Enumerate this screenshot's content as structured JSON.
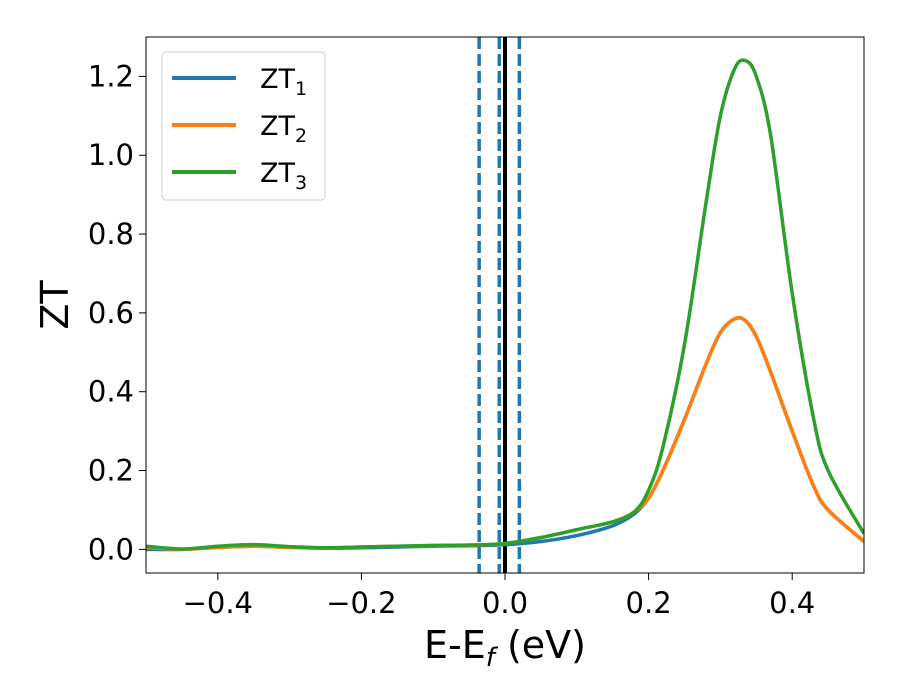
{
  "chart_data": {
    "type": "line",
    "xlabel": {
      "main": "E-E",
      "sub": "f",
      "unit": " (eV)"
    },
    "ylabel": "ZT",
    "xlim": [
      -0.5,
      0.5
    ],
    "ylim": [
      -0.06,
      1.3
    ],
    "x_ticks": [
      -0.4,
      -0.2,
      0.0,
      0.2,
      0.4
    ],
    "x_tick_labels": [
      "−0.4",
      "−0.2",
      "0.0",
      "0.2",
      "0.4"
    ],
    "y_ticks": [
      0.0,
      0.2,
      0.4,
      0.6,
      0.8,
      1.0,
      1.2
    ],
    "y_tick_labels": [
      "0.0",
      "0.2",
      "0.4",
      "0.6",
      "0.8",
      "1.0",
      "1.2"
    ],
    "grid": false,
    "legend": {
      "position": "top-left"
    },
    "vertical_lines": [
      {
        "x": 0.0,
        "style": "solid",
        "color": "#000000"
      },
      {
        "x": -0.036,
        "style": "dashed",
        "color": "#1f77b4"
      },
      {
        "x": -0.008,
        "style": "dashed",
        "color": "#1f77b4"
      },
      {
        "x": 0.02,
        "style": "dashed",
        "color": "#1f77b4"
      }
    ],
    "x": [
      -0.5,
      -0.45,
      -0.4,
      -0.35,
      -0.3,
      -0.25,
      -0.2,
      -0.15,
      -0.1,
      -0.05,
      0.0,
      0.05,
      0.1,
      0.15,
      0.18,
      0.2,
      0.22,
      0.25,
      0.28,
      0.3,
      0.32,
      0.335,
      0.35,
      0.37,
      0.4,
      0.43,
      0.45,
      0.5
    ],
    "series": [
      {
        "name": {
          "main": "ZT",
          "sub": "1"
        },
        "color": "#1f77b4",
        "values": [
          0.0,
          0.0,
          0.005,
          0.008,
          0.005,
          0.003,
          0.004,
          0.006,
          0.008,
          0.009,
          0.012,
          0.02,
          0.035,
          0.06,
          0.09,
          0.13,
          0.2,
          0.33,
          0.47,
          0.55,
          0.585,
          0.58,
          0.54,
          0.45,
          0.3,
          0.16,
          0.1,
          0.02
        ]
      },
      {
        "name": {
          "main": "ZT",
          "sub": "2"
        },
        "color": "#ff7f0e",
        "values": [
          0.005,
          0.0,
          0.005,
          0.008,
          0.005,
          0.004,
          0.006,
          0.008,
          0.009,
          0.01,
          0.015,
          0.03,
          0.05,
          0.07,
          0.095,
          0.13,
          0.2,
          0.33,
          0.47,
          0.55,
          0.585,
          0.58,
          0.54,
          0.45,
          0.3,
          0.16,
          0.1,
          0.02
        ]
      },
      {
        "name": {
          "main": "ZT",
          "sub": "3"
        },
        "color": "#2ca02c",
        "values": [
          0.008,
          0.001,
          0.008,
          0.012,
          0.007,
          0.004,
          0.006,
          0.008,
          0.01,
          0.011,
          0.015,
          0.03,
          0.05,
          0.07,
          0.095,
          0.15,
          0.26,
          0.52,
          0.88,
          1.1,
          1.22,
          1.24,
          1.2,
          1.05,
          0.65,
          0.33,
          0.2,
          0.04
        ]
      }
    ]
  }
}
